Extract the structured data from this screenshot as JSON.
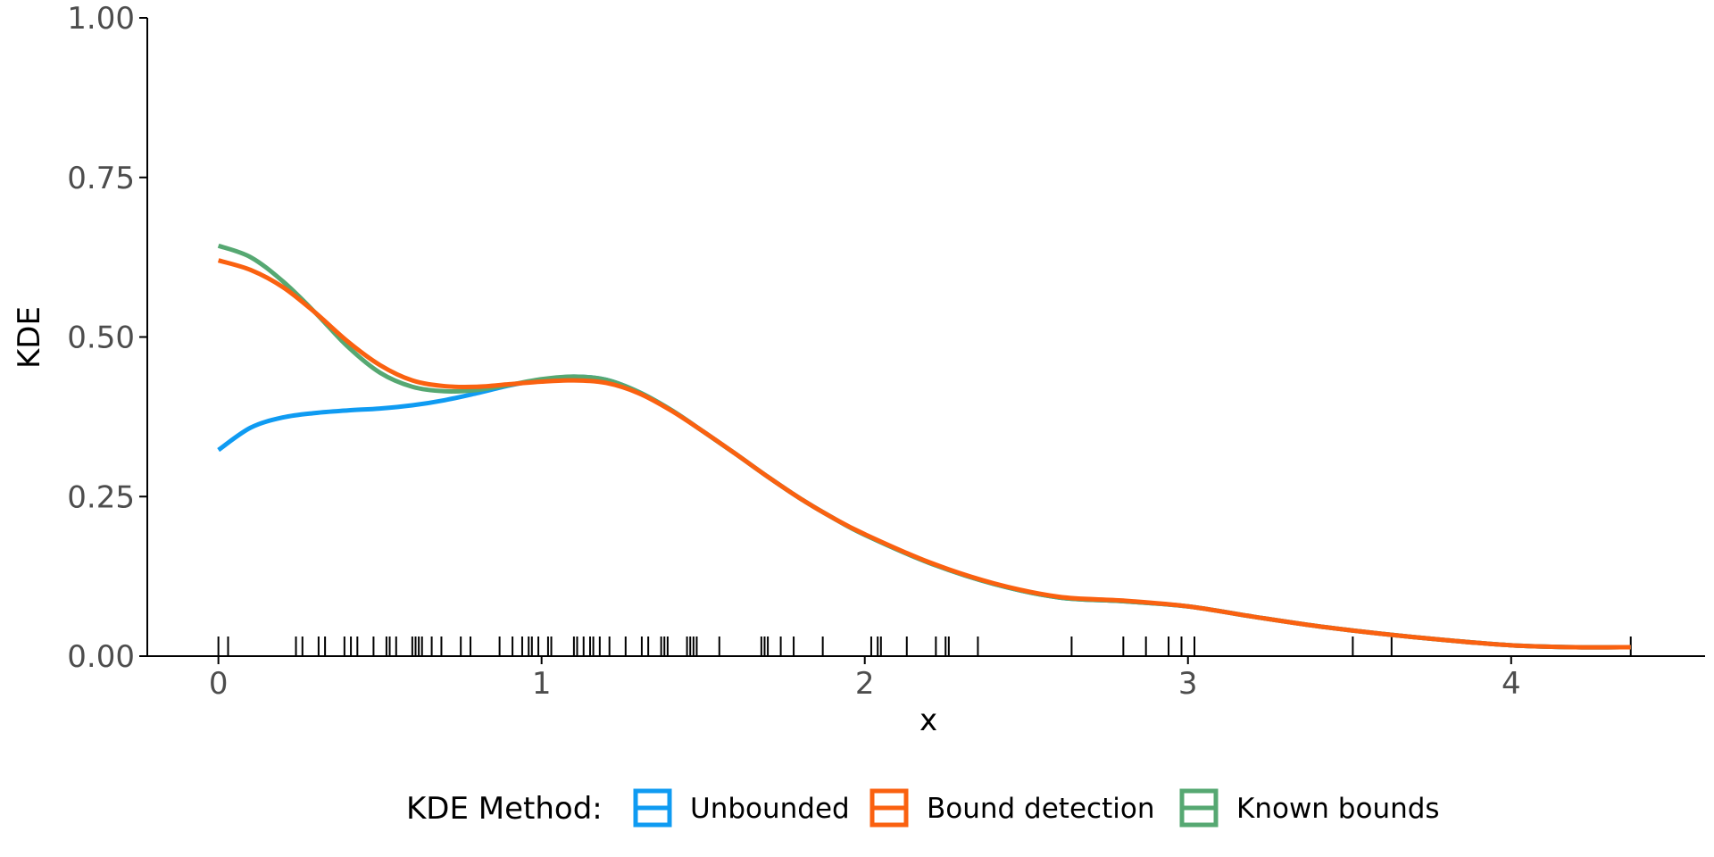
{
  "chart_data": {
    "type": "line",
    "xlabel": "x",
    "ylabel": "KDE",
    "xlim": [
      -0.22,
      4.6
    ],
    "ylim": [
      0,
      1
    ],
    "x_ticks": [
      0,
      1,
      2,
      3,
      4
    ],
    "x_tick_labels": [
      "0",
      "1",
      "2",
      "3",
      "4"
    ],
    "y_ticks": [
      0,
      0.25,
      0.5,
      0.75,
      1.0
    ],
    "y_tick_labels": [
      "0.00",
      "0.25",
      "0.50",
      "0.75",
      "1.00"
    ],
    "grid": false,
    "legend": {
      "title": "KDE Method:",
      "position": "bottom",
      "entries": [
        "Unbounded",
        "Bound detection",
        "Known bounds"
      ]
    },
    "series": [
      {
        "name": "Unbounded",
        "color": "#0f9bf2",
        "x": [
          0.0,
          0.1,
          0.2,
          0.3,
          0.4,
          0.5,
          0.6,
          0.7,
          0.8,
          0.9,
          1.0,
          1.1,
          1.2,
          1.3,
          1.4,
          1.5,
          1.6,
          1.7,
          1.8,
          1.9,
          2.0,
          2.2,
          2.4,
          2.6,
          2.8,
          3.0,
          3.2,
          3.4,
          3.6,
          3.8,
          4.0,
          4.2,
          4.37
        ],
        "y": [
          0.323,
          0.358,
          0.374,
          0.381,
          0.385,
          0.388,
          0.393,
          0.401,
          0.412,
          0.424,
          0.433,
          0.438,
          0.433,
          0.414,
          0.386,
          0.352,
          0.317,
          0.281,
          0.247,
          0.217,
          0.19,
          0.146,
          0.113,
          0.092,
          0.086,
          0.078,
          0.062,
          0.047,
          0.035,
          0.025,
          0.017,
          0.014,
          0.014
        ]
      },
      {
        "name": "Bound detection",
        "color": "#fa6110",
        "x": [
          0.0,
          0.1,
          0.2,
          0.3,
          0.4,
          0.5,
          0.6,
          0.7,
          0.8,
          0.9,
          1.0,
          1.1,
          1.2,
          1.3,
          1.4,
          1.5,
          1.6,
          1.7,
          1.8,
          1.9,
          2.0,
          2.2,
          2.4,
          2.6,
          2.8,
          3.0,
          3.2,
          3.4,
          3.6,
          3.8,
          4.0,
          4.2,
          4.37
        ],
        "y": [
          0.62,
          0.605,
          0.578,
          0.538,
          0.493,
          0.456,
          0.432,
          0.423,
          0.422,
          0.426,
          0.43,
          0.432,
          0.428,
          0.412,
          0.385,
          0.352,
          0.317,
          0.281,
          0.247,
          0.217,
          0.191,
          0.147,
          0.114,
          0.093,
          0.087,
          0.078,
          0.062,
          0.047,
          0.035,
          0.025,
          0.017,
          0.014,
          0.014
        ]
      },
      {
        "name": "Known bounds",
        "color": "#56a872",
        "x": [
          0.0,
          0.1,
          0.2,
          0.3,
          0.4,
          0.5,
          0.6,
          0.7,
          0.8,
          0.9,
          1.0,
          1.1,
          1.2,
          1.3,
          1.4,
          1.5,
          1.6,
          1.7,
          1.8,
          1.9,
          2.0,
          2.2,
          2.4,
          2.6,
          2.8,
          3.0,
          3.2,
          3.4,
          3.6,
          3.8,
          4.0,
          4.2,
          4.37
        ],
        "y": [
          0.643,
          0.625,
          0.587,
          0.538,
          0.485,
          0.444,
          0.422,
          0.415,
          0.417,
          0.425,
          0.434,
          0.438,
          0.433,
          0.414,
          0.386,
          0.352,
          0.317,
          0.281,
          0.247,
          0.217,
          0.19,
          0.146,
          0.113,
          0.092,
          0.086,
          0.078,
          0.062,
          0.047,
          0.035,
          0.025,
          0.017,
          0.014,
          0.014
        ]
      }
    ],
    "rug": {
      "color": "#000000",
      "x": [
        0.0,
        0.03,
        0.24,
        0.26,
        0.31,
        0.33,
        0.39,
        0.41,
        0.43,
        0.48,
        0.52,
        0.53,
        0.55,
        0.6,
        0.61,
        0.62,
        0.63,
        0.66,
        0.69,
        0.75,
        0.78,
        0.87,
        0.91,
        0.94,
        0.96,
        0.97,
        0.99,
        1.02,
        1.03,
        1.1,
        1.11,
        1.13,
        1.15,
        1.16,
        1.18,
        1.21,
        1.26,
        1.31,
        1.33,
        1.37,
        1.38,
        1.39,
        1.45,
        1.46,
        1.47,
        1.48,
        1.55,
        1.68,
        1.69,
        1.7,
        1.74,
        1.78,
        1.87,
        2.02,
        2.04,
        2.05,
        2.13,
        2.22,
        2.25,
        2.26,
        2.35,
        2.64,
        2.8,
        2.87,
        2.94,
        2.98,
        3.02,
        3.51,
        3.63,
        4.37
      ]
    }
  }
}
